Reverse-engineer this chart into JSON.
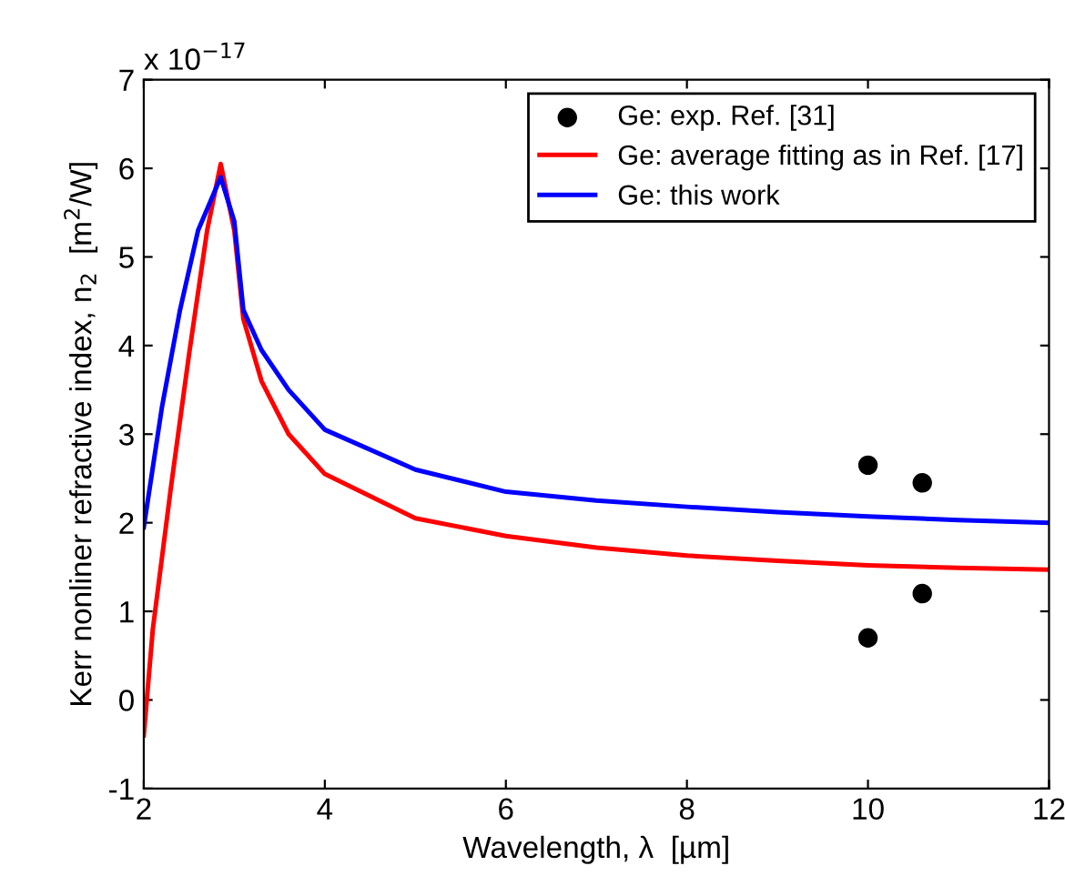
{
  "chart_data": {
    "type": "line",
    "xlabel": "Wavelength, λ  [µm]",
    "ylabel": "Kerr nonliner refractive index, n$_{2}$  [m$^{2}$/W]",
    "annotations": [
      "x 10$^{−17}$"
    ],
    "series": [
      {
        "name": "Ge: exp. Ref. [31]",
        "type": "scatter",
        "color": "#000000",
        "marker": "circle",
        "x": [
          10,
          10,
          10.6,
          10.6
        ],
        "values": [
          2.65,
          0.7,
          2.45,
          1.2
        ]
      },
      {
        "name": "Ge: average fitting as in Ref. [17]",
        "color": "#ff0000",
        "x": [
          2,
          2.1,
          2.3,
          2.5,
          2.7,
          2.85,
          3.0,
          3.1,
          3.3,
          3.6,
          4,
          5,
          6,
          7,
          8,
          9,
          10,
          11,
          12
        ],
        "values": [
          -0.4,
          0.8,
          2.4,
          3.9,
          5.3,
          6.05,
          5.3,
          4.3,
          3.6,
          3.0,
          2.55,
          2.05,
          1.85,
          1.72,
          1.63,
          1.57,
          1.52,
          1.49,
          1.47
        ]
      },
      {
        "name": "Ge: this work",
        "color": "#0000ff",
        "x": [
          2,
          2.2,
          2.4,
          2.6,
          2.85,
          3.0,
          3.1,
          3.3,
          3.6,
          4,
          5,
          6,
          7,
          8,
          9,
          10,
          11,
          12
        ],
        "values": [
          1.95,
          3.3,
          4.4,
          5.3,
          5.9,
          5.4,
          4.4,
          3.95,
          3.5,
          3.05,
          2.6,
          2.35,
          2.25,
          2.18,
          2.12,
          2.07,
          2.03,
          2.0
        ]
      }
    ],
    "xlim": [
      2,
      12
    ],
    "xticks": [
      2,
      4,
      6,
      8,
      10,
      12
    ],
    "ylim": [
      -1,
      7
    ],
    "yticks": [
      -1,
      0,
      1,
      2,
      3,
      4,
      5,
      6,
      7
    ],
    "grid": false,
    "legend": "top right"
  }
}
